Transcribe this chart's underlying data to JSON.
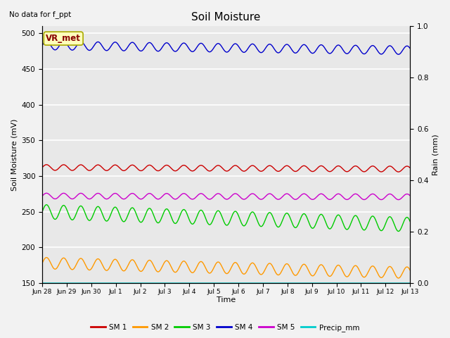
{
  "title": "Soil Moisture",
  "top_left_text": "No data for f_ppt",
  "legend_box_text": "VR_met",
  "xlabel": "Time",
  "ylabel_left": "Soil Moisture (mV)",
  "ylabel_right": "Rain (mm)",
  "ylim_left": [
    150,
    510
  ],
  "ylim_right": [
    0.0,
    1.0
  ],
  "yticks_left": [
    150,
    200,
    250,
    300,
    350,
    400,
    450,
    500
  ],
  "yticks_right": [
    0.0,
    0.2,
    0.4,
    0.6,
    0.8,
    1.0
  ],
  "xtick_labels": [
    "Jun 28",
    "Jun 29",
    "Jun 30",
    "Jul 1",
    "Jul 2",
    "Jul 3",
    "Jul 4",
    "Jul 5",
    "Jul 6",
    "Jul 7",
    "Jul 8",
    "Jul 9",
    "Jul 10",
    "Jul 11",
    "Jul 12",
    "Jul 13"
  ],
  "n_days": 15,
  "background_color": "#e8e8e8",
  "grid_color": "#ffffff",
  "fig_bg": "#f2f2f2",
  "series": {
    "SM1": {
      "color": "#cc0000",
      "base": 312,
      "amplitude": 4,
      "trend": -0.15,
      "period": 0.7
    },
    "SM2": {
      "color": "#ff9900",
      "base": 178,
      "amplitude": 8,
      "trend": -0.9,
      "period": 0.7
    },
    "SM3": {
      "color": "#00cc00",
      "base": 250,
      "amplitude": 10,
      "trend": -1.2,
      "period": 0.7
    },
    "SM4": {
      "color": "#0000cc",
      "base": 483,
      "amplitude": 6,
      "trend": -0.45,
      "period": 0.7
    },
    "SM5": {
      "color": "#cc00cc",
      "base": 272,
      "amplitude": 4,
      "trend": -0.08,
      "period": 0.7
    },
    "Precip": {
      "color": "#00cccc",
      "base": 150,
      "amplitude": 0,
      "trend": 0,
      "period": 1.0
    }
  },
  "legend_labels": [
    "SM 1",
    "SM 2",
    "SM 3",
    "SM 4",
    "SM 5",
    "Precip_mm"
  ],
  "legend_colors": [
    "#cc0000",
    "#ff9900",
    "#00cc00",
    "#0000cc",
    "#cc00cc",
    "#00cccc"
  ]
}
